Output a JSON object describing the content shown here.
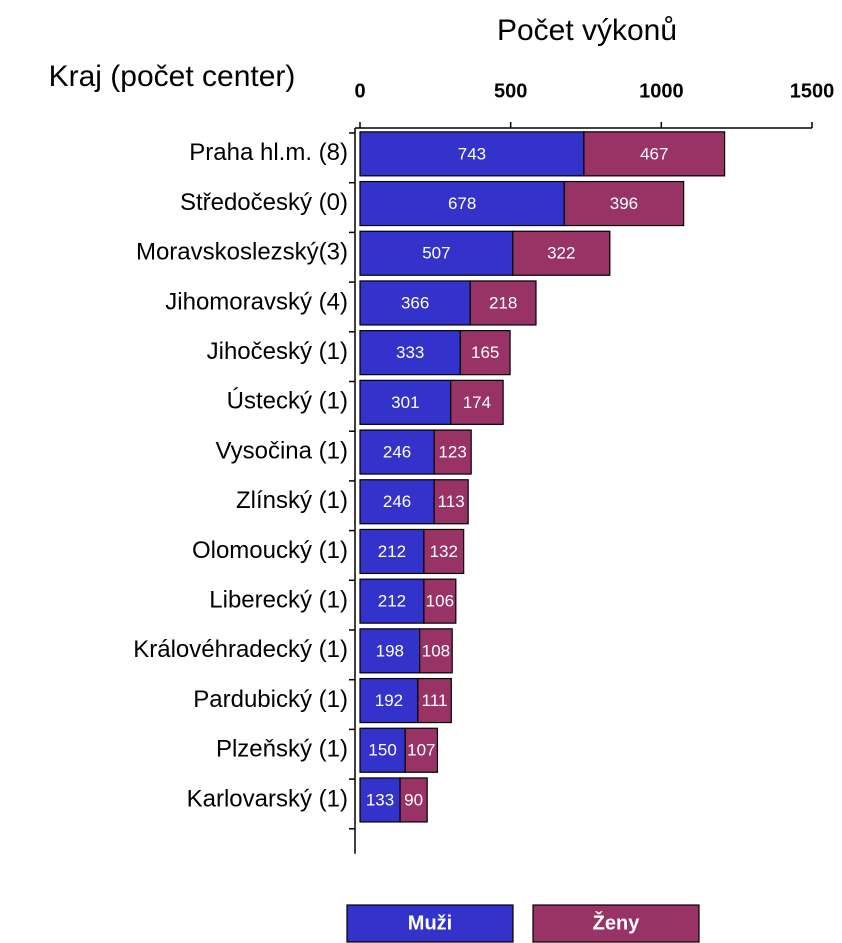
{
  "chart_data": {
    "type": "stacked-bar",
    "x_label": "Počet výkonů",
    "y_label": "Kraj (počet center)",
    "categories": [
      "Praha hl.m. (8)",
      "Středočeský (0)",
      "Moravskoslezský(3)",
      "Jihomoravský (4)",
      "Jihočeský (1)",
      "Ústecký (1)",
      "Vysočina (1)",
      "Zlínský (1)",
      "Olomoucký (1)",
      "Liberecký (1)",
      "Královéhradecký (1)",
      "Pardubický (1)",
      "Plzeňský (1)",
      "Karlovarský (1)"
    ],
    "series": [
      {
        "name": "Muži",
        "color": "#3333cc",
        "values": [
          743,
          678,
          507,
          366,
          333,
          301,
          246,
          246,
          212,
          212,
          198,
          192,
          150,
          133
        ]
      },
      {
        "name": "Ženy",
        "color": "#993366",
        "values": [
          467,
          396,
          322,
          218,
          165,
          174,
          123,
          113,
          132,
          106,
          108,
          111,
          107,
          90
        ]
      }
    ],
    "xlim": [
      0,
      1500
    ],
    "xticks": [
      0,
      500,
      1000,
      1500
    ]
  }
}
